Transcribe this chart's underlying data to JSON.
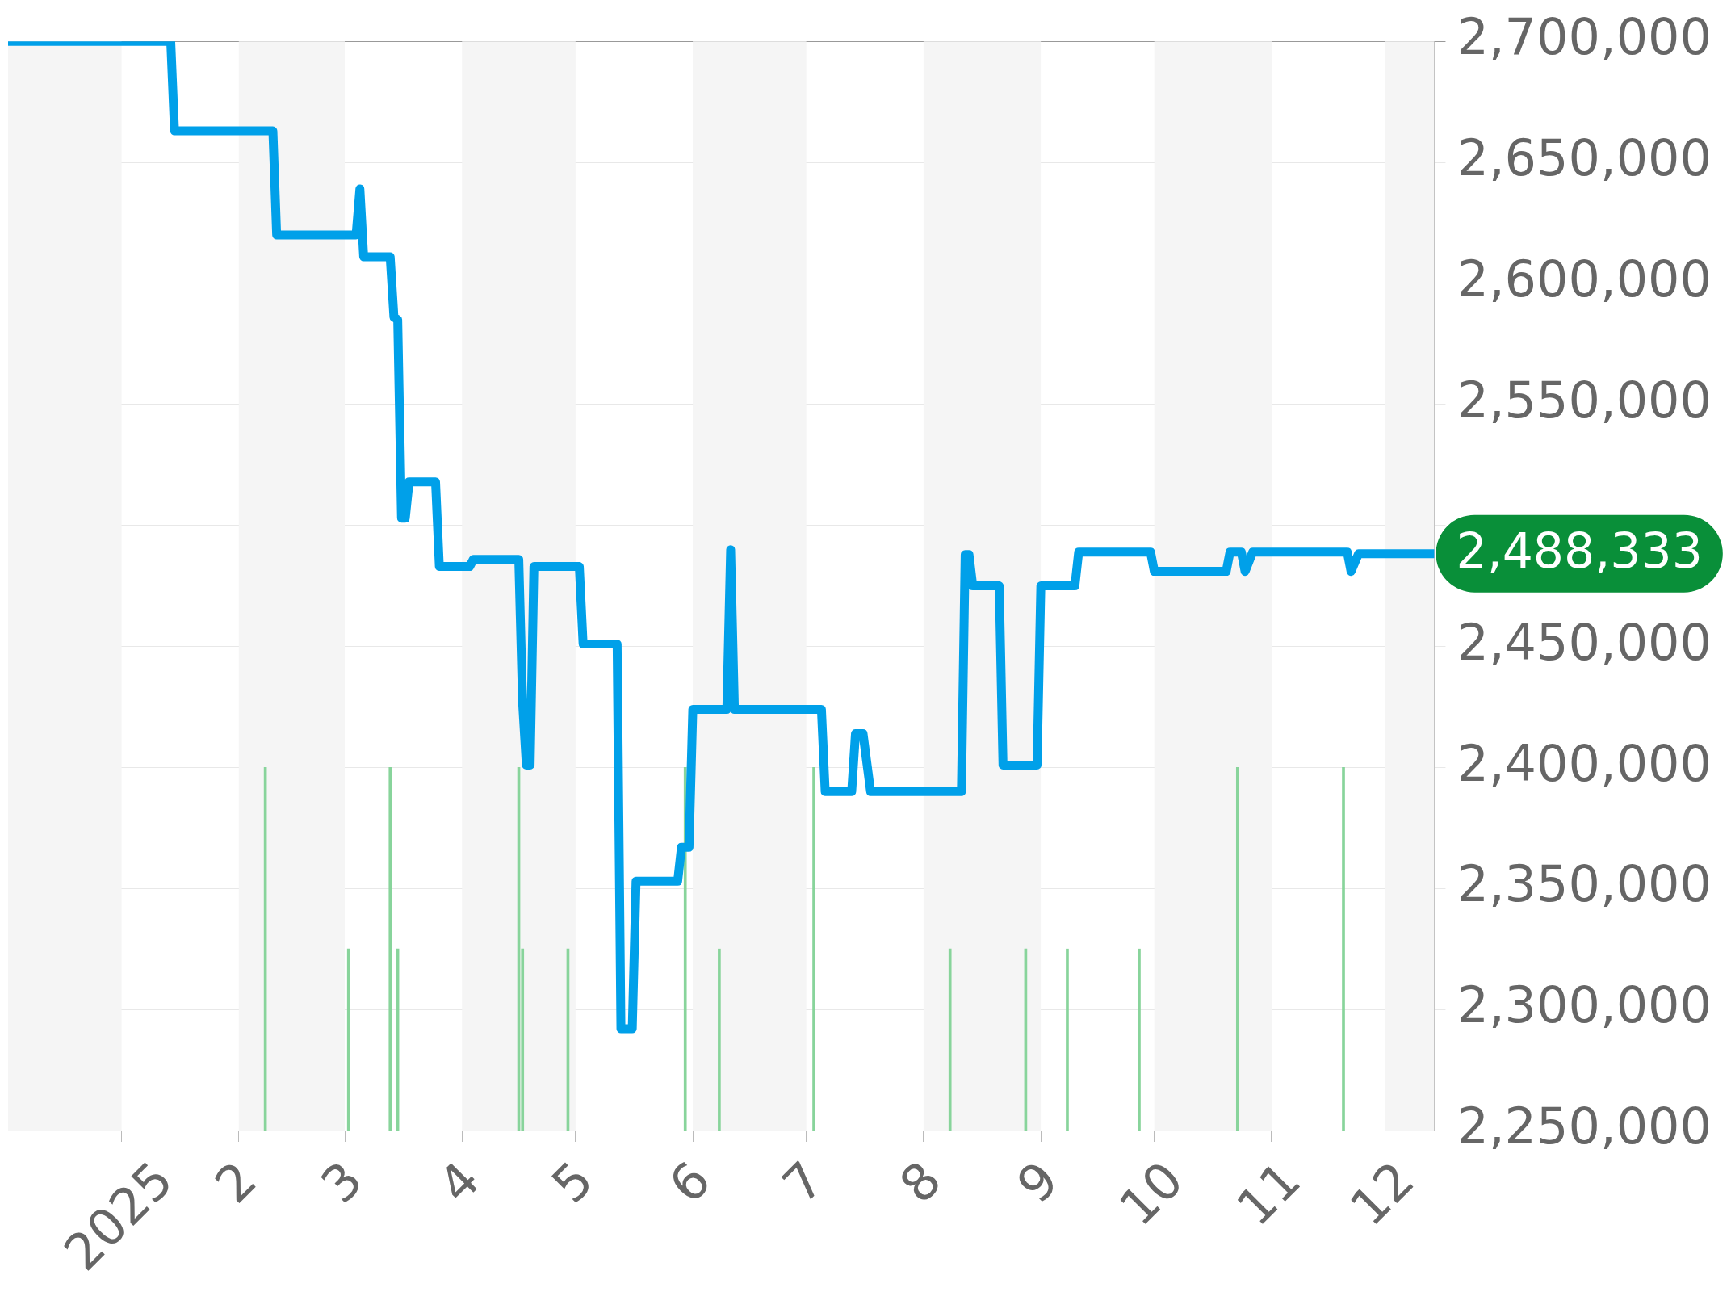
{
  "chart_data": {
    "type": "line",
    "grid": "y",
    "legend": false,
    "marker": "none",
    "x": [
      "2024-12-02",
      "2025-01-14",
      "2025-01-15",
      "2025-02-10",
      "2025-02-11",
      "2025-03-04",
      "2025-03-05",
      "2025-03-06",
      "2025-03-13",
      "2025-03-14",
      "2025-03-15",
      "2025-03-16",
      "2025-03-17",
      "2025-03-18",
      "2025-03-25",
      "2025-03-26",
      "2025-04-03",
      "2025-04-04",
      "2025-04-16",
      "2025-04-17",
      "2025-04-18",
      "2025-04-19",
      "2025-04-20",
      "2025-05-02",
      "2025-05-03",
      "2025-05-12",
      "2025-05-13",
      "2025-05-16",
      "2025-05-17",
      "2025-05-28",
      "2025-05-29",
      "2025-05-31",
      "2025-06-01",
      "2025-06-10",
      "2025-06-11",
      "2025-06-12",
      "2025-07-05",
      "2025-07-06",
      "2025-07-13",
      "2025-07-14",
      "2025-07-16",
      "2025-07-18",
      "2025-08-11",
      "2025-08-12",
      "2025-08-13",
      "2025-08-14",
      "2025-08-21",
      "2025-08-22",
      "2025-08-31",
      "2025-09-01",
      "2025-09-10",
      "2025-09-11",
      "2025-09-30",
      "2025-10-01",
      "2025-10-20",
      "2025-10-21",
      "2025-10-24",
      "2025-10-25",
      "2025-10-27",
      "2025-11-21",
      "2025-11-22",
      "2025-11-24",
      "2025-12-14"
    ],
    "series": [
      {
        "color": "#00a0e9",
        "values": [
          2700000,
          2700000,
          2663000,
          2663000,
          2620000,
          2620000,
          2639000,
          2611000,
          2611000,
          2586000,
          2585000,
          2503000,
          2503000,
          2518000,
          2518000,
          2483000,
          2483000,
          2486000,
          2486000,
          2427000,
          2401000,
          2401000,
          2483000,
          2483000,
          2451000,
          2451000,
          2292000,
          2292000,
          2353000,
          2353000,
          2367000,
          2367000,
          2424000,
          2424000,
          2490000,
          2424000,
          2424000,
          2390000,
          2390000,
          2414000,
          2414000,
          2390000,
          2390000,
          2488000,
          2488000,
          2475000,
          2475000,
          2401000,
          2401000,
          2475000,
          2475000,
          2489000,
          2489000,
          2481000,
          2481000,
          2489000,
          2489000,
          2481000,
          2489000,
          2489000,
          2481000,
          2488333,
          2488333
        ]
      },
      {
        "type": "bar",
        "color": "#88d49b",
        "x": [
          "2025-02-08",
          "2025-03-02",
          "2025-03-13",
          "2025-03-15",
          "2025-04-16",
          "2025-04-17",
          "2025-04-29",
          "2025-05-30",
          "2025-06-08",
          "2025-07-03",
          "2025-08-08",
          "2025-08-28",
          "2025-09-08",
          "2025-09-27",
          "2025-10-23",
          "2025-11-20"
        ],
        "base": [
          2250000,
          2250000,
          2250000,
          2250000,
          2250000,
          2250000,
          2250000,
          2250000,
          2250000,
          2250000,
          2250000,
          2250000,
          2250000,
          2250000,
          2250000,
          2250000
        ],
        "values": [
          150000,
          75000,
          150000,
          75000,
          150000,
          75000,
          75000,
          150000,
          75000,
          150000,
          75000,
          75000,
          75000,
          75000,
          150000,
          150000
        ]
      }
    ],
    "xlim": [
      "2024-12-02",
      "2025-12-14"
    ],
    "xticks": [
      {
        "value": "2025-01-01",
        "label": "2025"
      },
      {
        "value": "2025-02-01",
        "label": "2"
      },
      {
        "value": "2025-03-01",
        "label": "3"
      },
      {
        "value": "2025-04-01",
        "label": "4"
      },
      {
        "value": "2025-05-01",
        "label": "5"
      },
      {
        "value": "2025-06-01",
        "label": "6"
      },
      {
        "value": "2025-07-01",
        "label": "7"
      },
      {
        "value": "2025-08-01",
        "label": "8"
      },
      {
        "value": "2025-09-01",
        "label": "9"
      },
      {
        "value": "2025-10-01",
        "label": "10"
      },
      {
        "value": "2025-11-01",
        "label": "11"
      },
      {
        "value": "2025-12-01",
        "label": "12"
      }
    ],
    "ylim": [
      2250000,
      2700000
    ],
    "yticks": [
      {
        "value": 2250000,
        "label": "2,250,000"
      },
      {
        "value": 2300000,
        "label": "2,300,000"
      },
      {
        "value": 2350000,
        "label": "2,350,000"
      },
      {
        "value": 2400000,
        "label": "2,400,000"
      },
      {
        "value": 2450000,
        "label": "2,450,000"
      },
      {
        "value": 2500000,
        "label": null
      },
      {
        "value": 2550000,
        "label": "2,550,000"
      },
      {
        "value": 2600000,
        "label": "2,600,000"
      },
      {
        "value": 2650000,
        "label": "2,650,000"
      },
      {
        "value": 2700000,
        "label": "2,700,000"
      }
    ],
    "bands": [
      {
        "axis": "x",
        "from": "2024-12-02",
        "to": "2025-01-01",
        "color": "#f5f5f5"
      },
      {
        "axis": "x",
        "from": "2025-02-01",
        "to": "2025-03-01",
        "color": "#f5f5f5"
      },
      {
        "axis": "x",
        "from": "2025-04-01",
        "to": "2025-05-01",
        "color": "#f5f5f5"
      },
      {
        "axis": "x",
        "from": "2025-06-01",
        "to": "2025-07-01",
        "color": "#f5f5f5"
      },
      {
        "axis": "x",
        "from": "2025-08-01",
        "to": "2025-09-01",
        "color": "#f5f5f5"
      },
      {
        "axis": "x",
        "from": "2025-10-01",
        "to": "2025-11-01",
        "color": "#f5f5f5"
      },
      {
        "axis": "x",
        "from": "2025-12-01",
        "to": "2025-12-14",
        "color": "#f5f5f5"
      }
    ],
    "annotations": [
      {
        "text": "2,488,333",
        "x": "2025-12-14",
        "y": 2488333
      }
    ]
  }
}
